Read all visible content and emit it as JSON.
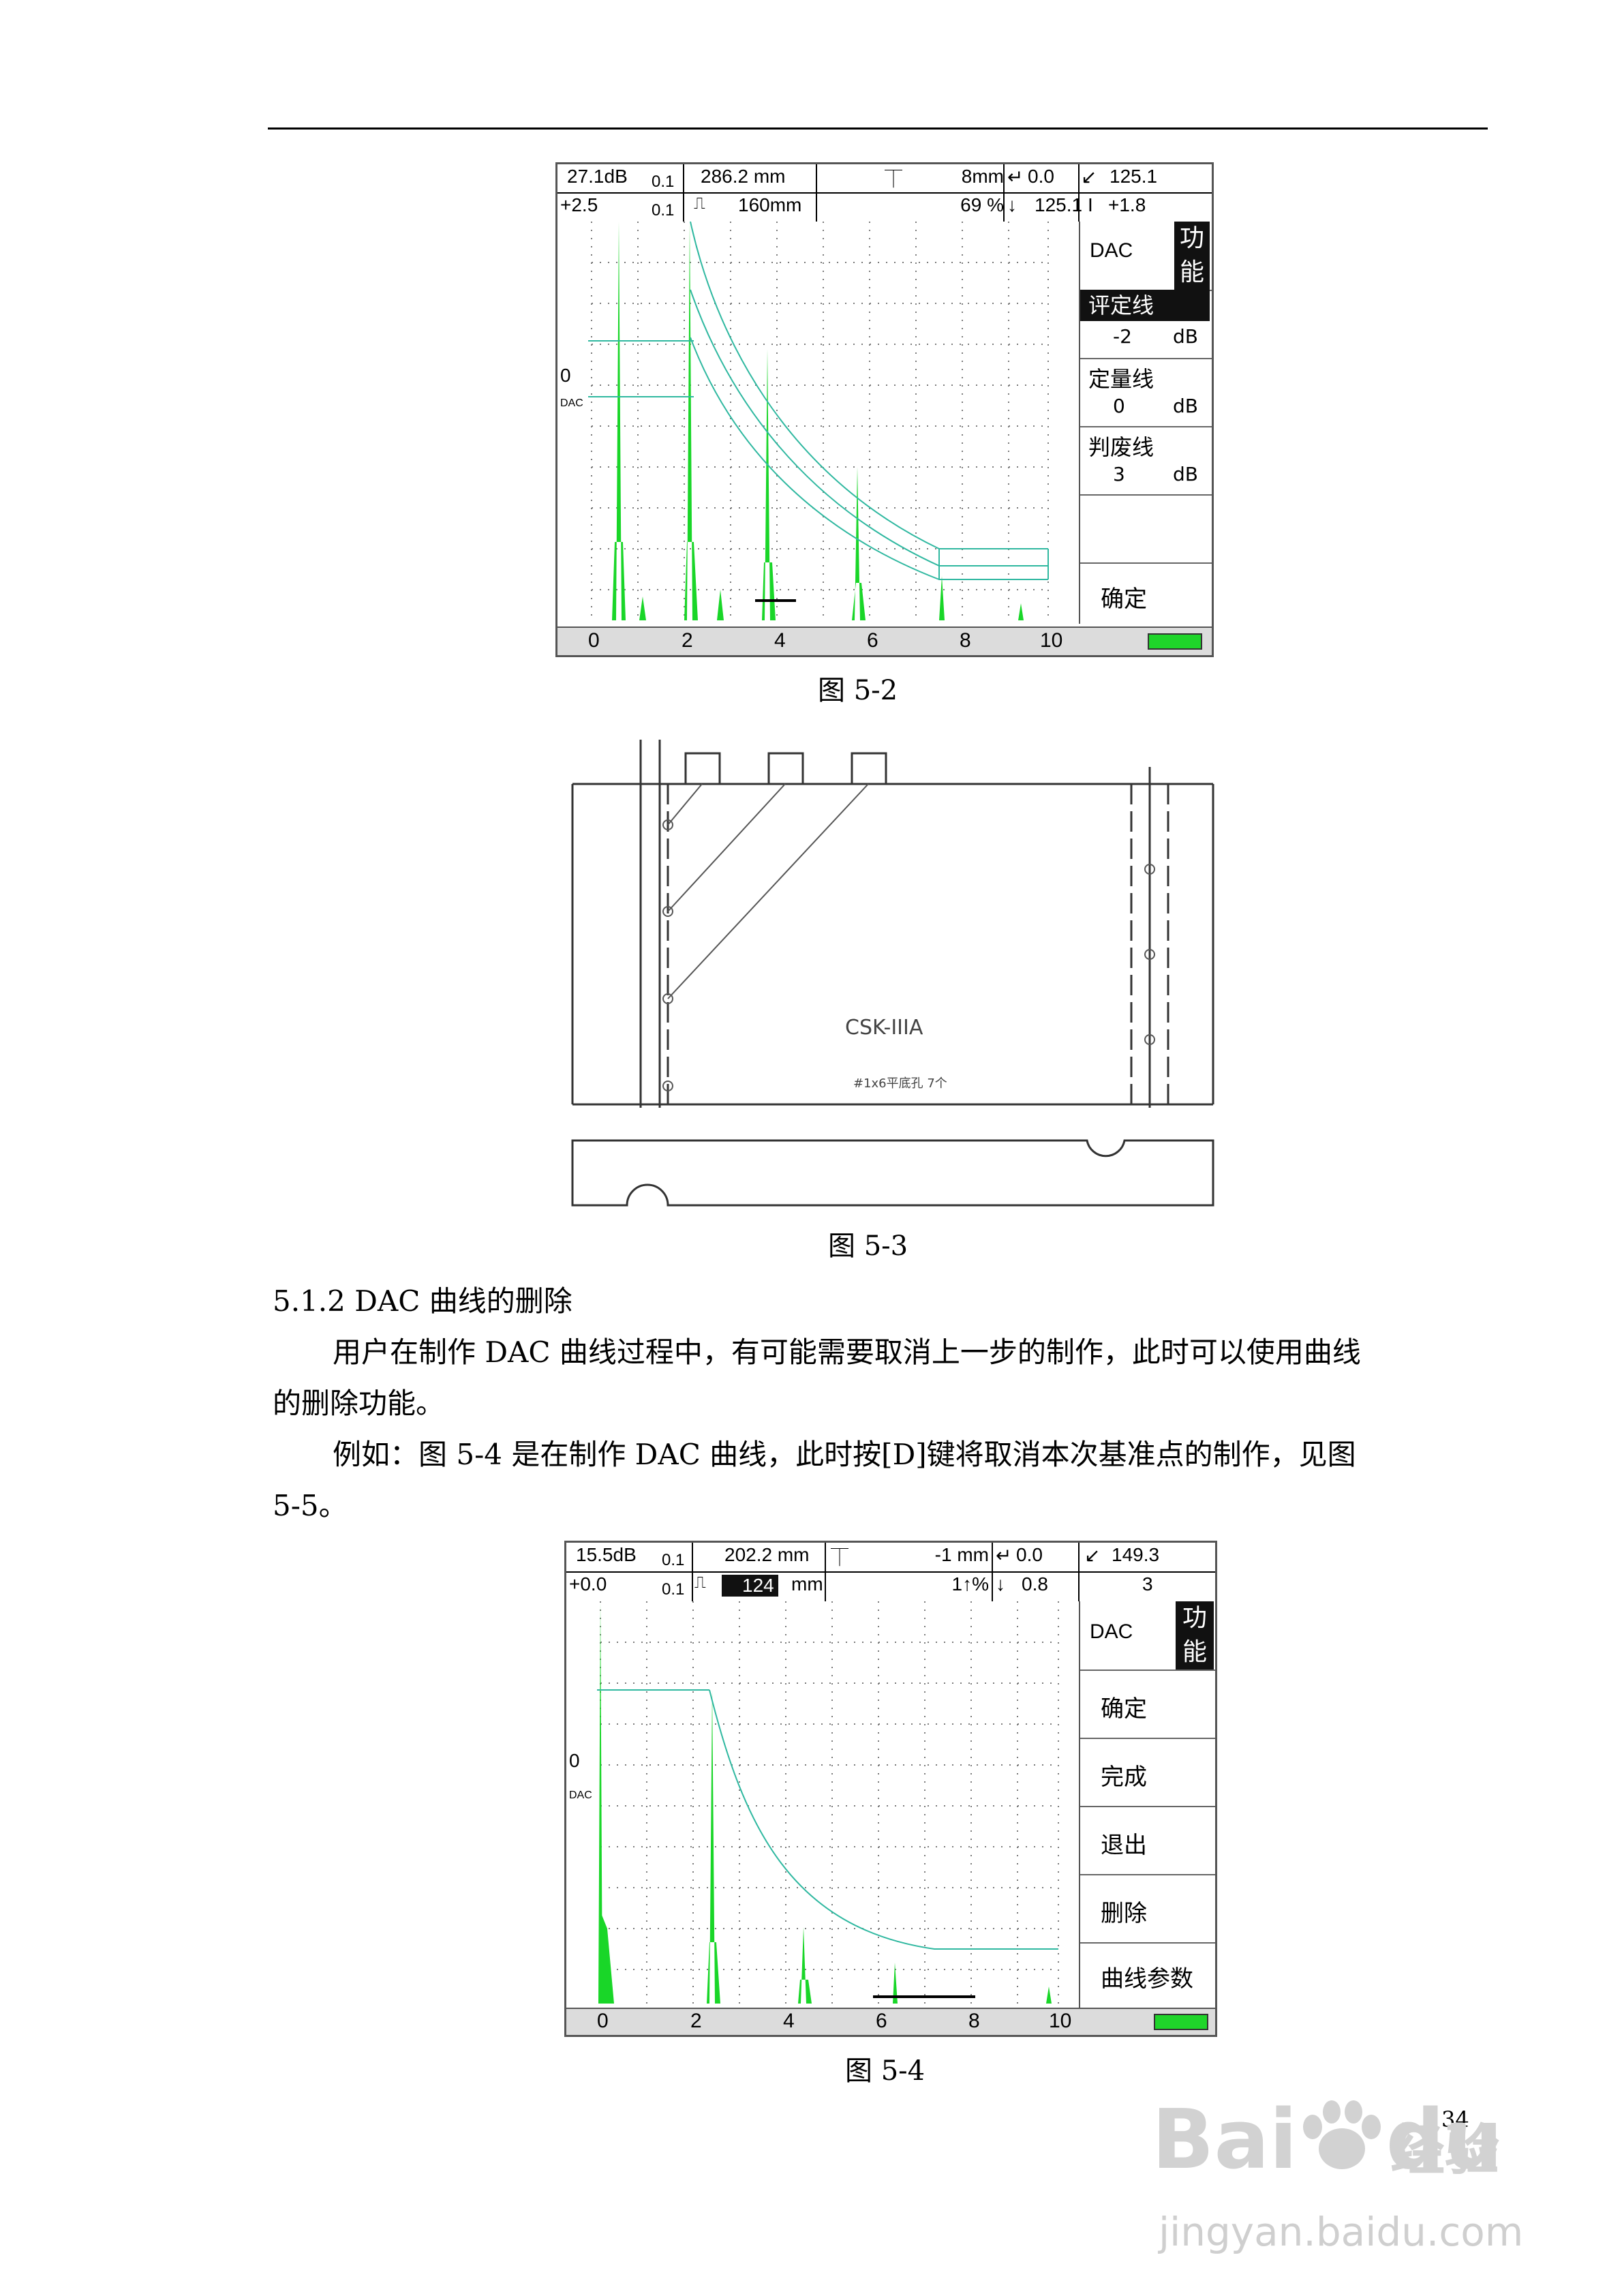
{
  "figure_5_2": {
    "header": {
      "r1": [
        "27.1dB",
        "0.1",
        "286.2 mm",
        "8mm",
        "0.0",
        "125.1"
      ],
      "r2": [
        "+2.5",
        "0.1",
        "160mm",
        "69 %",
        "125.1",
        "+1.8"
      ]
    },
    "axis_left": [
      "0",
      "DAC"
    ],
    "ticks": [
      "0",
      "2",
      "4",
      "6",
      "8",
      "10"
    ],
    "menu": {
      "title": "DAC",
      "func": "功能",
      "items": [
        {
          "label": "评定线",
          "value": "-2",
          "unit": "dB"
        },
        {
          "label": "定量线",
          "value": "0",
          "unit": "dB"
        },
        {
          "label": "判废线",
          "value": "3",
          "unit": "dB"
        }
      ],
      "confirm": "确定"
    },
    "caption": "图 5-2"
  },
  "figure_5_3": {
    "label": "CSK-IIIA",
    "sublabel": "#1x6平底孔 7个",
    "caption": "图 5-3"
  },
  "section": {
    "heading": "5.1.2   DAC 曲线的删除",
    "p1_line1": "用户在制作 DAC 曲线过程中，有可能需要取消上一步的制作，此时可以使用曲线",
    "p1_line2": "的删除功能。",
    "p2_line1": "例如：图 5-4 是在制作 DAC 曲线，此时按[D]键将取消本次基准点的制作，见图",
    "p2_line2": "5-5。"
  },
  "figure_5_4": {
    "header": {
      "r1": [
        "15.5dB",
        "0.1",
        "202.2 mm",
        "-1 mm",
        "0.0",
        "149.3"
      ],
      "r2": [
        "+0.0",
        "0.1",
        "124",
        "mm",
        "1↑%",
        "0.8",
        "3"
      ]
    },
    "axis_left": [
      "0",
      "DAC"
    ],
    "ticks": [
      "0",
      "2",
      "4",
      "6",
      "8",
      "10"
    ],
    "menu": {
      "title": "DAC",
      "func": "功能",
      "items": [
        "确定",
        "完成",
        "退出",
        "删除",
        "曲线参数"
      ]
    },
    "caption": "图 5-4"
  },
  "page_number": "34",
  "watermark": {
    "brand": "Bai",
    "brand2": "du",
    "cn": "经验",
    "url": "jingyan.baidu.com"
  },
  "colors": {
    "echo": "#19d628",
    "dac_curve": "#2fb8a0",
    "grid": "#7a7a7a"
  }
}
